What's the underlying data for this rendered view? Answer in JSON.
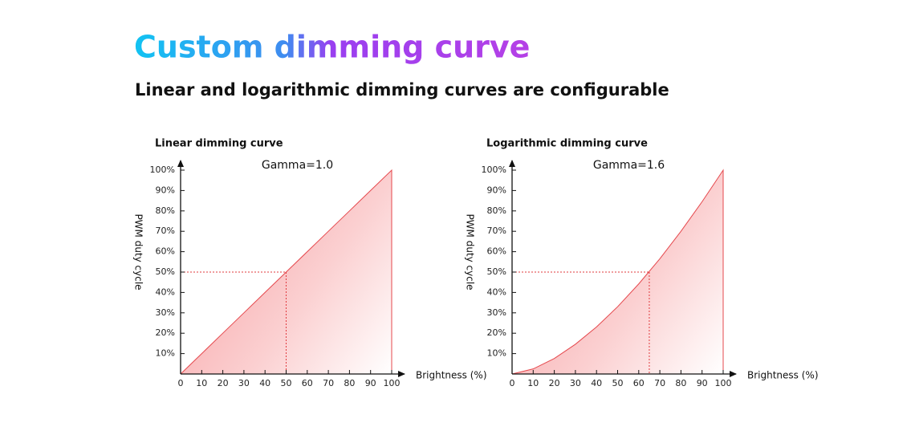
{
  "header": {
    "title": "Custom dimming curve",
    "subtitle": "Linear and logarithmic dimming curves are configurable"
  },
  "chart_data": [
    {
      "type": "area",
      "title": "Linear dimming curve",
      "annotation": "Gamma=1.0",
      "x_label": "Brightness (%)",
      "y_label": "PWM duty cycle",
      "color": "#e5484d",
      "x": [
        0,
        10,
        20,
        30,
        40,
        50,
        60,
        70,
        80,
        90,
        100
      ],
      "values": [
        0,
        10,
        20,
        30,
        40,
        50,
        60,
        70,
        80,
        90,
        100
      ],
      "reference": {
        "x": 50,
        "y": 50
      },
      "xlim": [
        0,
        100
      ],
      "xticks": [
        0,
        10,
        20,
        30,
        40,
        50,
        60,
        70,
        80,
        90,
        100
      ],
      "ylim": [
        0,
        100
      ],
      "yticks": [
        {
          "value": 10,
          "label": "10%"
        },
        {
          "value": 20,
          "label": "20%"
        },
        {
          "value": 30,
          "label": "30%"
        },
        {
          "value": 40,
          "label": "40%"
        },
        {
          "value": 50,
          "label": "50%"
        },
        {
          "value": 60,
          "label": "60%"
        },
        {
          "value": 70,
          "label": "70%"
        },
        {
          "value": 80,
          "label": "80%"
        },
        {
          "value": 90,
          "label": "90%"
        },
        {
          "value": 100,
          "label": "100%"
        }
      ]
    },
    {
      "type": "area",
      "title": "Logarithmic dimming curve",
      "annotation": "Gamma=1.6",
      "x_label": "Brightness (%)",
      "y_label": "PWM duty cycle",
      "color": "#e5484d",
      "x": [
        0,
        10,
        20,
        30,
        40,
        50,
        60,
        70,
        80,
        90,
        100
      ],
      "values": [
        0,
        2.5,
        7.6,
        14.6,
        23.1,
        33,
        44.2,
        56.5,
        70,
        84.5,
        100
      ],
      "reference": {
        "x": 65,
        "y": 50
      },
      "xlim": [
        0,
        100
      ],
      "xticks": [
        0,
        10,
        20,
        30,
        40,
        50,
        60,
        70,
        80,
        90,
        100
      ],
      "ylim": [
        0,
        100
      ],
      "yticks": [
        {
          "value": 10,
          "label": "10%"
        },
        {
          "value": 20,
          "label": "20%"
        },
        {
          "value": 30,
          "label": "30%"
        },
        {
          "value": 40,
          "label": "40%"
        },
        {
          "value": 50,
          "label": "50%"
        },
        {
          "value": 60,
          "label": "60%"
        },
        {
          "value": 70,
          "label": "70%"
        },
        {
          "value": 80,
          "label": "80%"
        },
        {
          "value": 90,
          "label": "90%"
        },
        {
          "value": 100,
          "label": "100%"
        }
      ]
    }
  ]
}
